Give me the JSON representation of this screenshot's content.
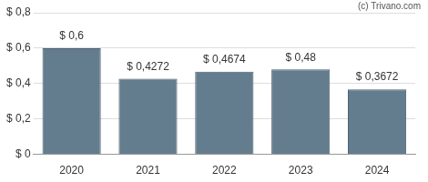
{
  "chart_data": {
    "type": "bar",
    "categories": [
      "2020",
      "2021",
      "2022",
      "2023",
      "2024"
    ],
    "values": [
      0.6,
      0.4272,
      0.4674,
      0.48,
      0.3672
    ],
    "value_labels": [
      "$ 0,6",
      "$ 0,4272",
      "$ 0,4674",
      "$ 0,48",
      "$ 0,3672"
    ],
    "data_labels": true,
    "color": "#647d8e",
    "ylim": [
      0,
      0.8
    ],
    "yticks": [
      {
        "value": 0,
        "label": "$ 0"
      },
      {
        "value": 0.2,
        "label": "$ 0,2"
      },
      {
        "value": 0.4,
        "label": "$ 0,4"
      },
      {
        "value": 0.6,
        "label": "$ 0,6"
      },
      {
        "value": 0.8,
        "label": "$ 0,8"
      }
    ],
    "grid": true,
    "annotations": [
      "(c) Trivano.com"
    ]
  }
}
